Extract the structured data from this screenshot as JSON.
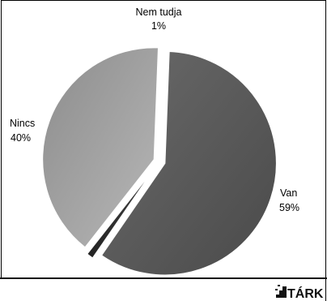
{
  "chart_data": {
    "type": "pie",
    "slices": [
      {
        "label": "Van",
        "value": 59,
        "value_label": "59%",
        "color": "#5a5a5a"
      },
      {
        "label": "Nem tudja",
        "value": 1,
        "value_label": "1%",
        "color": "#2e2e2e"
      },
      {
        "label": "Nincs",
        "value": 40,
        "value_label": "40%",
        "color": "#9e9e9e"
      }
    ],
    "exploded": true
  },
  "logo": {
    "text": "TÁRK"
  }
}
